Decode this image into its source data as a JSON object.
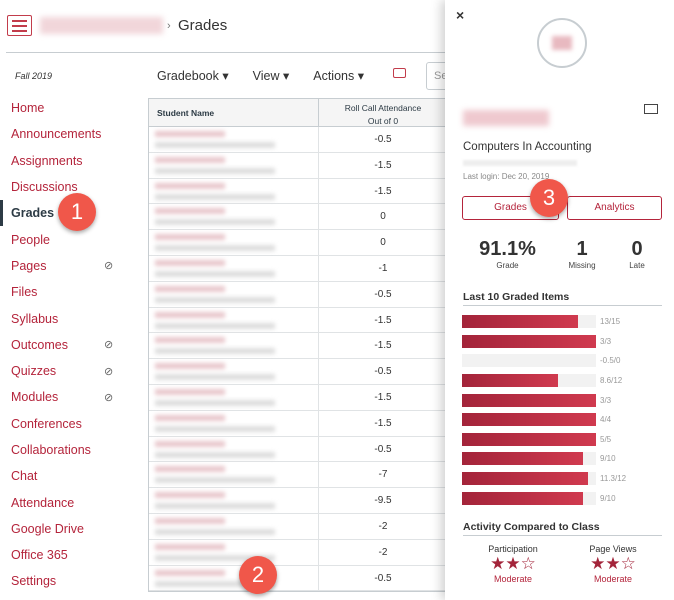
{
  "header": {
    "breadcrumb_current": "Grades",
    "separator": "›"
  },
  "sidebar": {
    "term": "Fall 2019",
    "items": [
      {
        "label": "Home"
      },
      {
        "label": "Announcements"
      },
      {
        "label": "Assignments"
      },
      {
        "label": "Discussions"
      },
      {
        "label": "Grades",
        "active": true
      },
      {
        "label": "People"
      },
      {
        "label": "Pages",
        "hidden": true
      },
      {
        "label": "Files"
      },
      {
        "label": "Syllabus"
      },
      {
        "label": "Outcomes",
        "hidden": true
      },
      {
        "label": "Quizzes",
        "hidden": true
      },
      {
        "label": "Modules",
        "hidden": true
      },
      {
        "label": "Conferences"
      },
      {
        "label": "Collaborations"
      },
      {
        "label": "Chat"
      },
      {
        "label": "Attendance"
      },
      {
        "label": "Google Drive"
      },
      {
        "label": "Office 365"
      },
      {
        "label": "Settings"
      }
    ]
  },
  "toolbar": {
    "gradebook": "Gradebook ▾",
    "view": "View ▾",
    "actions": "Actions ▾",
    "search_placeholder": "Se"
  },
  "table": {
    "col_student": "Student Name",
    "col_assignment": "Roll Call Attendance",
    "col_assignment_sub": "Out of 0",
    "values": [
      "-0.5",
      "-1.5",
      "-1.5",
      "0",
      "0",
      "-1",
      "-0.5",
      "-1.5",
      "-1.5",
      "-0.5",
      "-1.5",
      "-1.5",
      "-0.5",
      "-7",
      "-9.5",
      "-2",
      "-2",
      "-0.5"
    ]
  },
  "tray": {
    "close": "×",
    "course": "Computers In Accounting",
    "last_login": "Last login: Dec 20, 2019",
    "grades_btn": "Grades",
    "analytics_btn": "Analytics",
    "stats": [
      {
        "value": "91.1%",
        "label": "Grade"
      },
      {
        "value": "1",
        "label": "Missing"
      },
      {
        "value": "0",
        "label": "Late"
      }
    ],
    "last_items_title": "Last 10 Graded Items",
    "items": [
      {
        "label": "13/15",
        "fraction": 0.867
      },
      {
        "label": "3/3",
        "fraction": 1
      },
      {
        "label": "-0.5/0",
        "fraction": 0
      },
      {
        "label": "8.6/12",
        "fraction": 0.717
      },
      {
        "label": "3/3",
        "fraction": 1
      },
      {
        "label": "4/4",
        "fraction": 1
      },
      {
        "label": "5/5",
        "fraction": 1
      },
      {
        "label": "9/10",
        "fraction": 0.9
      },
      {
        "label": "11.3/12",
        "fraction": 0.942
      },
      {
        "label": "9/10",
        "fraction": 0.9
      }
    ],
    "activity_title": "Activity Compared to Class",
    "activity": [
      {
        "label": "Participation",
        "stars": "★★☆",
        "rating": 2,
        "level": "Moderate"
      },
      {
        "label": "Page Views",
        "stars": "★★☆",
        "rating": 2,
        "level": "Moderate"
      }
    ]
  },
  "badges": [
    "1",
    "2",
    "3"
  ],
  "colors": {
    "brand": "#b4243b",
    "badge": "#f0574a"
  }
}
